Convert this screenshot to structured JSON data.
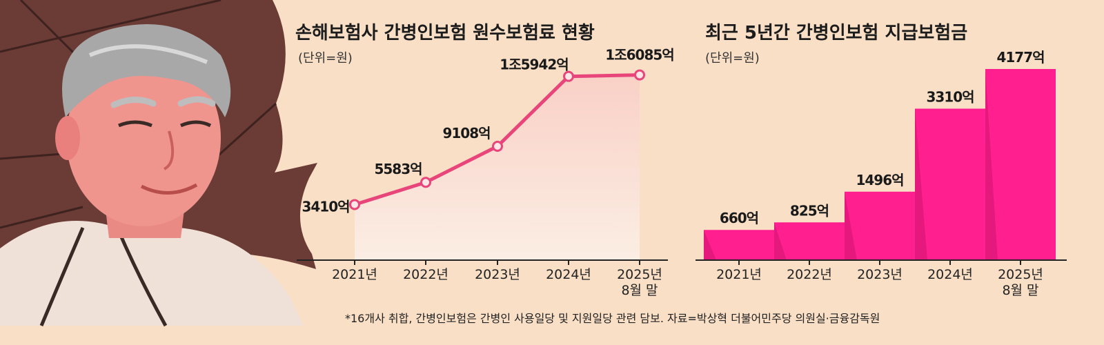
{
  "colors": {
    "background": "#f8dfc6",
    "line": "#e8457a",
    "bar": "#ff1f8e",
    "bar_shadow": "#d0146f",
    "umbrella": "#6b3b35",
    "skin": "#f0948e",
    "hair": "#a8a8a8"
  },
  "illustration": {
    "icon": "elderly-man-with-umbrella-illustration"
  },
  "footnote": "*16개사 취합, 간병인보험은 간병인 사용일당 및 지원일당 관련 담보. 자료=박상혁 더불어민주당 의원실·금융감독원",
  "chart_data": [
    {
      "type": "line",
      "title": "손해보험사 간병인보험 원수보험료 현황",
      "unit": "(단위=원)",
      "categories": [
        "2021년",
        "2022년",
        "2023년",
        "2024년",
        "2025년 8월 말"
      ],
      "values": [
        3410,
        5583,
        9108,
        15942,
        16085
      ],
      "value_unit": "억",
      "data_labels": [
        "3410억",
        "5583억",
        "9108억",
        "1조5942억",
        "1조6085억"
      ],
      "ylim": [
        0,
        17000
      ],
      "grid": false,
      "legend": "none"
    },
    {
      "type": "bar",
      "title": "최근 5년간 간병인보험 지급보험금",
      "unit": "(단위=원)",
      "categories": [
        "2021년",
        "2022년",
        "2023년",
        "2024년",
        "2025년 8월 말"
      ],
      "values": [
        660,
        825,
        1496,
        3310,
        4177
      ],
      "value_unit": "억",
      "data_labels": [
        "660억",
        "825억",
        "1496억",
        "3310억",
        "4177억"
      ],
      "ylim": [
        0,
        4177
      ],
      "grid": false,
      "legend": "none"
    }
  ]
}
